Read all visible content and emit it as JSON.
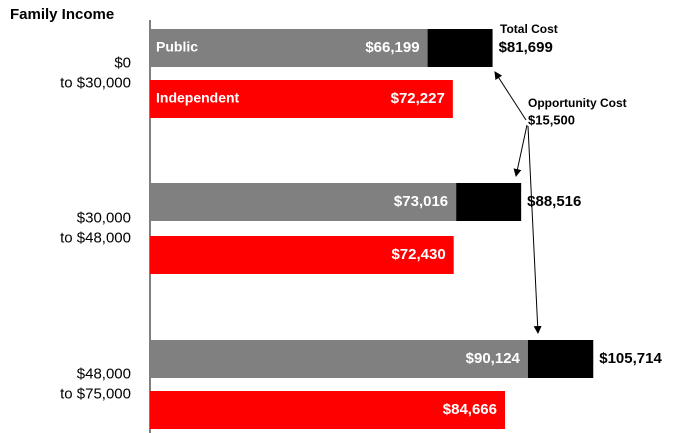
{
  "chart_data": {
    "type": "bar",
    "orientation": "horizontal",
    "title": "Family Income",
    "categories": [
      [
        "$0",
        "to $30,000"
      ],
      [
        "$30,000",
        "to $48,000"
      ],
      [
        "$48,000",
        "to $75,000"
      ]
    ],
    "xlim": [
      0,
      129500
    ],
    "series": [
      {
        "name": "Public",
        "color": "#808080",
        "values": [
          66199,
          73016,
          90124
        ],
        "value_labels": [
          "$66,199",
          "$73,016",
          "$90,124"
        ]
      },
      {
        "color": "#000000",
        "stack": "Public",
        "values": [
          15500,
          15500,
          15590
        ]
      },
      {
        "name": "Independent",
        "color": "#ff0000",
        "values": [
          72227,
          72430,
          84666
        ],
        "value_labels": [
          "$72,227",
          "$72,430",
          "$84,666"
        ]
      }
    ],
    "totals": [
      81699,
      88516,
      105714
    ],
    "total_labels": [
      "$81,699",
      "$88,516",
      "$105,714"
    ],
    "annotations": {
      "total_cost": "Total Cost",
      "opportunity_cost": "Opportunity Cost",
      "opportunity_cost_value": "$15,500"
    }
  }
}
